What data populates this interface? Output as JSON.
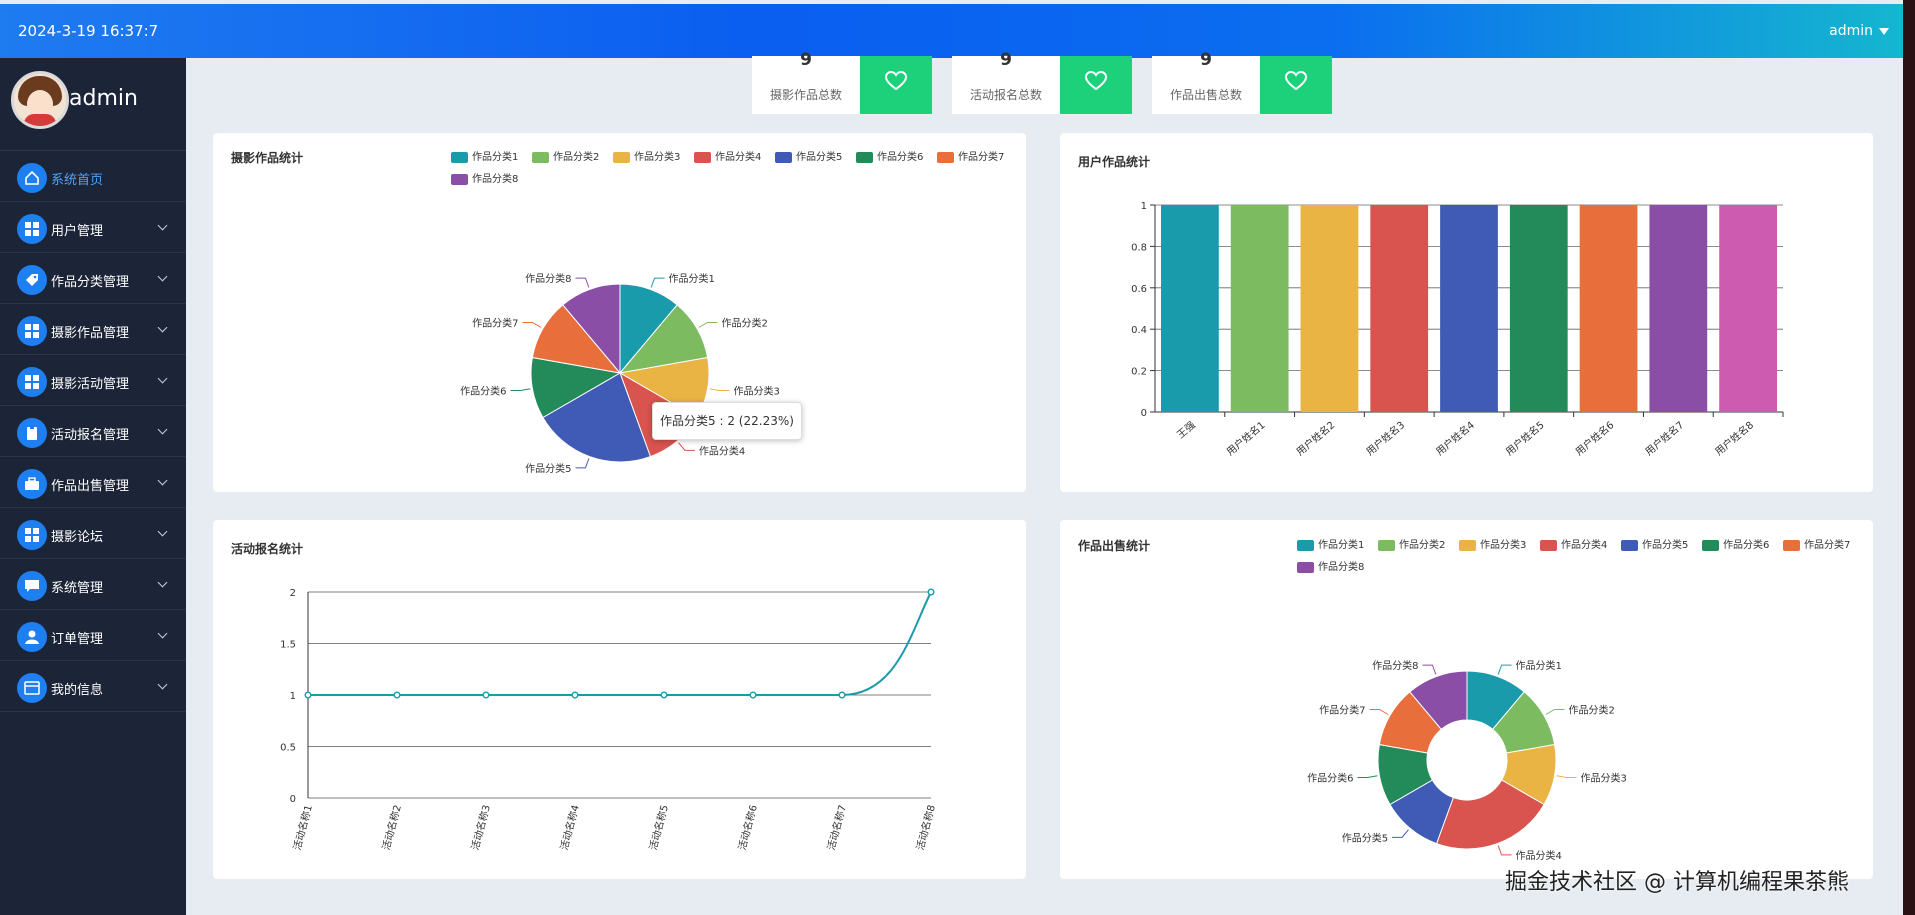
{
  "topbar": {
    "datetime": "2024-3-19 16:37:7",
    "user": "admin"
  },
  "sidebar": {
    "username": "admin",
    "items": [
      {
        "label": "系统首页",
        "icon": "home-icon"
      },
      {
        "label": "用户管理",
        "icon": "grid-icon"
      },
      {
        "label": "作品分类管理",
        "icon": "tag-icon"
      },
      {
        "label": "摄影作品管理",
        "icon": "grid-icon"
      },
      {
        "label": "摄影活动管理",
        "icon": "grid-icon"
      },
      {
        "label": "活动报名管理",
        "icon": "clipboard-icon"
      },
      {
        "label": "作品出售管理",
        "icon": "briefcase-icon"
      },
      {
        "label": "摄影论坛",
        "icon": "grid-icon"
      },
      {
        "label": "系统管理",
        "icon": "chat-icon"
      },
      {
        "label": "订单管理",
        "icon": "user-icon"
      },
      {
        "label": "我的信息",
        "icon": "card-icon"
      }
    ]
  },
  "stats": [
    {
      "value": "9",
      "label": "摄影作品总数"
    },
    {
      "value": "9",
      "label": "活动报名总数"
    },
    {
      "value": "9",
      "label": "作品出售总数"
    }
  ],
  "colors": [
    "#1a9bab",
    "#7cbb5f",
    "#e9b443",
    "#d9534f",
    "#3f5bb5",
    "#238a5a",
    "#e86e3c",
    "#8a4ea6",
    "#cd5cb0"
  ],
  "tooltip": "作品分类5 : 2 (22.23%)",
  "watermark": "掘金技术社区 @ 计算机编程果茶熊",
  "chart_data": [
    {
      "type": "pie",
      "title": "摄影作品统计",
      "categories": [
        "作品分类1",
        "作品分类2",
        "作品分类3",
        "作品分类4",
        "作品分类5",
        "作品分类6",
        "作品分类7",
        "作品分类8"
      ],
      "values": [
        1,
        1,
        1,
        1,
        2,
        1,
        1,
        1
      ],
      "legend": "top-right"
    },
    {
      "type": "bar",
      "title": "用户作品统计",
      "categories": [
        "王强",
        "用户姓名1",
        "用户姓名2",
        "用户姓名3",
        "用户姓名4",
        "用户姓名5",
        "用户姓名6",
        "用户姓名7",
        "用户姓名8"
      ],
      "values": [
        1,
        1,
        1,
        1,
        1,
        1,
        1,
        1,
        1
      ],
      "ylim": [
        0,
        1
      ],
      "yticks": [
        "0",
        "0.2",
        "0.4",
        "0.6",
        "0.8",
        "1"
      ]
    },
    {
      "type": "line",
      "title": "活动报名统计",
      "categories": [
        "活动名称1",
        "活动名称2",
        "活动名称3",
        "活动名称4",
        "活动名称5",
        "活动名称6",
        "活动名称7",
        "活动名称8"
      ],
      "values": [
        1,
        1,
        1,
        1,
        1,
        1,
        1,
        2
      ],
      "ylim": [
        0,
        2
      ],
      "yticks": [
        "0",
        "0.5",
        "1",
        "1.5",
        "2"
      ]
    },
    {
      "type": "pie",
      "title": "作品出售统计",
      "categories": [
        "作品分类1",
        "作品分类2",
        "作品分类3",
        "作品分类4",
        "作品分类5",
        "作品分类6",
        "作品分类7",
        "作品分类8"
      ],
      "values": [
        1,
        1,
        1,
        2,
        1,
        1,
        1,
        1
      ],
      "donut": true,
      "legend": "top-right"
    }
  ]
}
